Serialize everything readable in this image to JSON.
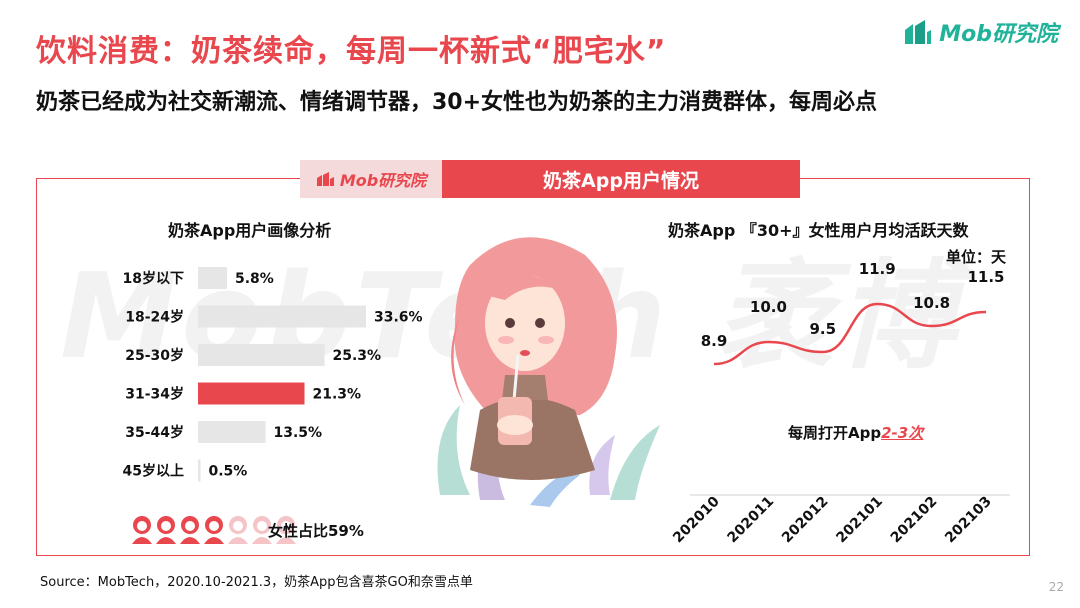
{
  "header": {
    "title_red": "饮料消费：奶茶续命，",
    "title_black": "每周一杯新式“肥宅水”",
    "subtitle": "奶茶已经成为社交新潮流、情绪调节器，30+女性也为奶茶的主力消费群体，每周必点",
    "logo_text": "Mob研究院",
    "logo_color": "#21b39a"
  },
  "panel": {
    "tab_logo": "Mob研究院",
    "tab_title": "奶茶App用户情况",
    "accent": "#e8474e",
    "watermark": "MobTech 袤博"
  },
  "chart_data": [
    {
      "type": "bar",
      "orientation": "horizontal",
      "title": "奶茶App用户画像分析",
      "categories": [
        "18岁以下",
        "18-24岁",
        "25-30岁",
        "31-34岁",
        "35-44岁",
        "45岁以上"
      ],
      "values": [
        5.8,
        33.6,
        25.3,
        21.3,
        13.5,
        0.5
      ],
      "value_labels": [
        "5.8%",
        "33.6%",
        "25.3%",
        "21.3%",
        "13.5%",
        "0.5%"
      ],
      "highlight_index": 3,
      "colors": {
        "default": "#e6e6e6",
        "highlight": "#e8474e"
      },
      "gender_note": "女性占比59%",
      "female_share": 0.59
    },
    {
      "type": "line",
      "title": "奶茶App 『30+』女性用户月均活跃天数",
      "unit": "单位：天",
      "x": [
        "202010",
        "202011",
        "202012",
        "202101",
        "202102",
        "202103"
      ],
      "values": [
        8.9,
        10.0,
        9.5,
        11.9,
        10.8,
        11.5
      ],
      "value_labels": [
        "8.9",
        "10.0",
        "9.5",
        "11.9",
        "10.8",
        "11.5"
      ],
      "color": "#e8474e",
      "note_prefix": "每周打开App",
      "note_highlight": "2-3次"
    }
  ],
  "footer": {
    "source": "Source：MobTech，2020.10-2021.3，奶茶App包含喜茶GO和奈雪点单",
    "page": "22"
  }
}
